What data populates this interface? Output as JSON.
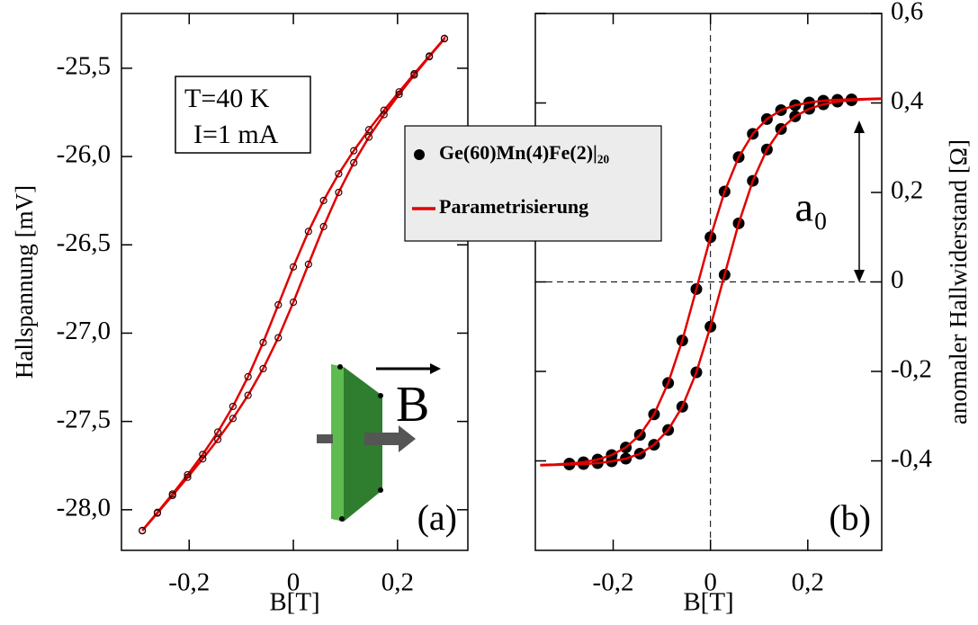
{
  "chart_data": [
    {
      "type": "line",
      "xlabel": "B[T]",
      "ylabel": "Hallspannung [mV]",
      "xlim": [
        -0.33,
        0.335
      ],
      "ylim": [
        -28.23,
        -25.19
      ],
      "xticks": [
        {
          "value": -0.2,
          "label": "-0,2"
        },
        0,
        {
          "value": 0.2,
          "label": "0,2"
        }
      ],
      "yticks": [
        {
          "value": -28.0,
          "label": "-28,0"
        },
        {
          "value": -27.5,
          "label": "-27,5"
        },
        {
          "value": -27.0,
          "label": "-27,0"
        },
        {
          "value": -26.5,
          "label": "-26,5"
        },
        {
          "value": -26.0,
          "label": "-26,0"
        },
        {
          "value": -25.5,
          "label": "-25,5"
        }
      ],
      "y_axis_side": "left",
      "annotations": [
        {
          "text": "T=40 K"
        },
        {
          "text": "I=1 mA"
        },
        {
          "text": "(a)"
        },
        {
          "text": "B"
        }
      ],
      "series": [
        {
          "color": "#e00000",
          "marker": "open-circle",
          "marker_color": "#3a0000",
          "line": true,
          "x": [
            -0.29,
            -0.261,
            -0.232,
            -0.203,
            -0.174,
            -0.145,
            -0.116,
            -0.087,
            -0.058,
            -0.029,
            0,
            0.029,
            0.058,
            0.087,
            0.116,
            0.145,
            0.174,
            0.203,
            0.232,
            0.261,
            0.29,
            0.29,
            0.261,
            0.232,
            0.203,
            0.174,
            0.145,
            0.116,
            0.087,
            0.058,
            0.029,
            0,
            -0.029,
            -0.058,
            -0.087,
            -0.116,
            -0.145,
            -0.174,
            -0.203,
            -0.232,
            -0.261,
            -0.29
          ],
          "values": [
            -28.119,
            -28.019,
            -27.919,
            -27.816,
            -27.712,
            -27.602,
            -27.483,
            -27.352,
            -27.201,
            -27.026,
            -26.825,
            -26.61,
            -26.397,
            -26.203,
            -26.035,
            -25.89,
            -25.763,
            -25.648,
            -25.539,
            -25.435,
            -25.333,
            -25.331,
            -25.431,
            -25.531,
            -25.634,
            -25.738,
            -25.848,
            -25.967,
            -26.098,
            -26.249,
            -26.424,
            -26.625,
            -26.84,
            -27.053,
            -27.247,
            -27.415,
            -27.56,
            -27.687,
            -27.802,
            -27.911,
            -28.015,
            -28.117
          ]
        }
      ]
    },
    {
      "type": "line",
      "xlabel": "B[T]",
      "ylabel": "anomaler Hallwiderstand [Ω]",
      "xlim": [
        -0.36,
        0.352
      ],
      "ylim": [
        -0.6,
        0.6
      ],
      "xticks": [
        {
          "value": -0.2,
          "label": "-0,2"
        },
        0,
        {
          "value": 0.2,
          "label": "0,2"
        }
      ],
      "yticks": [
        {
          "value": -0.4,
          "label": "-0,4"
        },
        {
          "value": -0.2,
          "label": "-0,2"
        },
        0,
        {
          "value": 0.2,
          "label": "0,2"
        },
        {
          "value": 0.4,
          "label": "0,4"
        },
        {
          "value": 0.6,
          "label": "0,6"
        }
      ],
      "y_axis_side": "right",
      "zero_lines": true,
      "annotations": [
        {
          "text": "(b)"
        },
        {
          "text": "a₀"
        }
      ],
      "series": [
        {
          "name": "Ge(60)Mn(4)Fe(2)|₂₀",
          "color": "#000000",
          "marker": "circle",
          "line": false,
          "x": [
            -0.29,
            -0.261,
            -0.232,
            -0.203,
            -0.174,
            -0.145,
            -0.116,
            -0.087,
            -0.058,
            -0.029,
            0,
            0.029,
            0.058,
            0.087,
            0.116,
            0.145,
            0.174,
            0.203,
            0.232,
            0.261,
            0.29,
            0.29,
            0.261,
            0.232,
            0.203,
            0.174,
            0.145,
            0.116,
            0.087,
            0.058,
            0.029,
            0,
            -0.029,
            -0.058,
            -0.087,
            -0.116,
            -0.145,
            -0.174,
            -0.203,
            -0.232,
            -0.261,
            -0.29
          ],
          "values": [
            -0.408,
            -0.407,
            -0.405,
            -0.401,
            -0.395,
            -0.384,
            -0.364,
            -0.331,
            -0.279,
            -0.202,
            -0.1,
            0.016,
            0.131,
            0.226,
            0.296,
            0.342,
            0.37,
            0.387,
            0.397,
            0.403,
            0.406,
            0.408,
            0.407,
            0.405,
            0.401,
            0.395,
            0.384,
            0.364,
            0.331,
            0.279,
            0.202,
            0.1,
            -0.016,
            -0.131,
            -0.226,
            -0.296,
            -0.342,
            -0.37,
            -0.387,
            -0.397,
            -0.403,
            -0.406
          ]
        },
        {
          "name": "Parametrisierung",
          "color": "#e00000",
          "marker": "none",
          "line": true,
          "x": [
            -0.35,
            -0.32,
            -0.29,
            -0.261,
            -0.232,
            -0.203,
            -0.174,
            -0.145,
            -0.116,
            -0.087,
            -0.058,
            -0.029,
            0,
            0.029,
            0.058,
            0.087,
            0.116,
            0.145,
            0.174,
            0.203,
            0.232,
            0.261,
            0.29,
            0.32,
            0.35,
            0.35,
            0.32,
            0.29,
            0.261,
            0.232,
            0.203,
            0.174,
            0.145,
            0.116,
            0.087,
            0.058,
            0.029,
            0,
            -0.029,
            -0.058,
            -0.087,
            -0.116,
            -0.145,
            -0.174,
            -0.203,
            -0.232,
            -0.261,
            -0.29,
            -0.32,
            -0.35
          ],
          "values": [
            -0.41,
            -0.409,
            -0.408,
            -0.407,
            -0.405,
            -0.401,
            -0.395,
            -0.384,
            -0.364,
            -0.331,
            -0.279,
            -0.202,
            -0.1,
            0.016,
            0.131,
            0.226,
            0.296,
            0.342,
            0.37,
            0.387,
            0.397,
            0.403,
            0.406,
            0.408,
            0.409,
            0.41,
            0.409,
            0.408,
            0.407,
            0.405,
            0.401,
            0.395,
            0.384,
            0.364,
            0.331,
            0.279,
            0.202,
            0.1,
            -0.016,
            -0.131,
            -0.226,
            -0.296,
            -0.342,
            -0.37,
            -0.387,
            -0.397,
            -0.403,
            -0.406,
            -0.408,
            -0.409
          ]
        }
      ]
    }
  ]
}
